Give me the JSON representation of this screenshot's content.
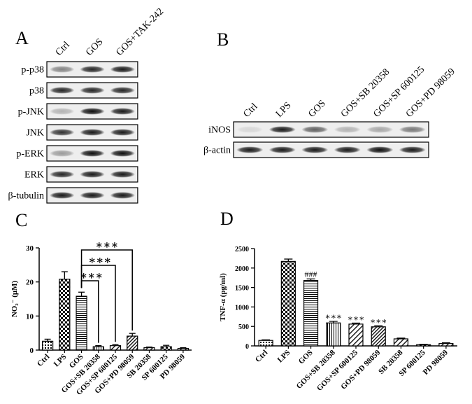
{
  "panels": {
    "a": {
      "letter": "A",
      "lanes": [
        "Ctrl",
        "GOS",
        "GOS+TAK-242"
      ],
      "rows": [
        {
          "label": "p-p38",
          "intensity": [
            0.45,
            0.85,
            0.9
          ]
        },
        {
          "label": "p38",
          "intensity": [
            0.85,
            0.85,
            0.85
          ]
        },
        {
          "label": "p-JNK",
          "intensity": [
            0.25,
            0.95,
            0.9
          ]
        },
        {
          "label": "JNK",
          "intensity": [
            0.8,
            0.9,
            0.9
          ]
        },
        {
          "label": "p-ERK",
          "intensity": [
            0.35,
            0.95,
            0.95
          ]
        },
        {
          "label": "ERK",
          "intensity": [
            0.85,
            0.9,
            0.9
          ]
        },
        {
          "label": "β-tubulin",
          "intensity": [
            0.9,
            0.9,
            0.9
          ]
        }
      ]
    },
    "b": {
      "letter": "B",
      "lanes": [
        "Ctrl",
        "LPS",
        "GOS",
        "GOS+SB 20358",
        "GOS+SP 600125",
        "GOS+PD 98059"
      ],
      "rows": [
        {
          "label": "iNOS",
          "intensity": [
            0.1,
            0.9,
            0.6,
            0.25,
            0.3,
            0.5
          ]
        },
        {
          "label": "β-actin",
          "intensity": [
            0.9,
            0.9,
            0.9,
            0.9,
            0.95,
            0.9
          ]
        }
      ]
    },
    "c": {
      "letter": "C"
    },
    "d": {
      "letter": "D"
    }
  },
  "chart_data": [
    {
      "type": "bar",
      "panel": "C",
      "categories": [
        "Ctrl",
        "LPS",
        "GOS",
        "GOS+SB 20358",
        "GOS+SP 600125",
        "GOS+PD 98059",
        "SB 20358",
        "SP 600125",
        "PD 98059"
      ],
      "values": [
        2.6,
        20.8,
        15.8,
        1.0,
        1.3,
        4.1,
        0.7,
        1.0,
        0.5
      ],
      "errors": [
        0.6,
        2.2,
        1.2,
        0.3,
        0.3,
        0.8,
        0.2,
        0.4,
        0.2
      ],
      "patterns": [
        "dots",
        "checker",
        "hlines",
        "vlines",
        "diag",
        "diag-dense",
        "diag",
        "checker",
        "diag"
      ],
      "ylabel": "NO₂⁻ (μM)",
      "ylim": [
        0,
        30
      ],
      "yticks": [
        0,
        10,
        20,
        30
      ],
      "annotations": [
        {
          "from": 2,
          "to": 3,
          "text": "∗∗∗"
        },
        {
          "from": 2,
          "to": 4,
          "text": "∗∗∗"
        },
        {
          "from": 2,
          "to": 5,
          "text": "∗∗∗"
        }
      ]
    },
    {
      "type": "bar",
      "panel": "D",
      "categories": [
        "Ctrl",
        "LPS",
        "GOS",
        "GOS+SB 20358",
        "GOS+SP 600125",
        "GOS+PD 98059",
        "SB 20358",
        "SP 600125",
        "PD 98059"
      ],
      "values": [
        140,
        2170,
        1680,
        590,
        560,
        490,
        180,
        30,
        60
      ],
      "errors": [
        15,
        60,
        40,
        40,
        25,
        25,
        20,
        10,
        20
      ],
      "patterns": [
        "dots",
        "checker",
        "hlines",
        "vlines",
        "diag",
        "diag-dense",
        "diag",
        "checker",
        "diag"
      ],
      "marks": [
        "",
        "",
        "###",
        "∗∗∗",
        "∗∗∗",
        "∗∗∗",
        "",
        "",
        ""
      ],
      "ylabel": "TNF-α  (pg/ml)",
      "ylim": [
        0,
        2500
      ],
      "yticks": [
        0,
        500,
        1000,
        1500,
        2000,
        2500
      ]
    }
  ]
}
